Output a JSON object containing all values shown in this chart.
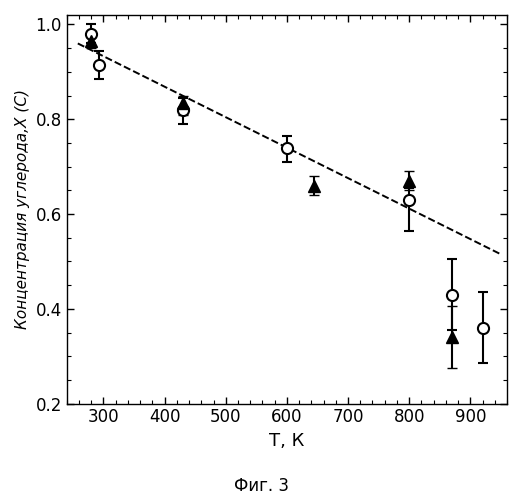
{
  "circles": {
    "x": [
      280,
      292,
      430,
      600,
      800,
      870,
      920
    ],
    "y": [
      0.98,
      0.915,
      0.82,
      0.74,
      0.63,
      0.43,
      0.36
    ],
    "yerr_lo": [
      0.02,
      0.03,
      0.03,
      0.03,
      0.065,
      0.075,
      0.075
    ],
    "yerr_hi": [
      0.02,
      0.03,
      0.025,
      0.025,
      0.025,
      0.075,
      0.075
    ]
  },
  "triangles": {
    "x": [
      280,
      430,
      645,
      800,
      870
    ],
    "y": [
      0.965,
      0.835,
      0.66,
      0.67,
      0.34
    ],
    "yerr_lo": [
      0.015,
      0.025,
      0.02,
      0.02,
      0.065
    ],
    "yerr_hi": [
      0.015,
      0.015,
      0.02,
      0.02,
      0.065
    ]
  },
  "dashed_line": {
    "x": [
      258,
      950
    ],
    "y": [
      0.96,
      0.515
    ]
  },
  "xlim": [
    240,
    960
  ],
  "ylim": [
    0.2,
    1.02
  ],
  "xticks": [
    300,
    400,
    500,
    600,
    700,
    800,
    900
  ],
  "yticks": [
    0.2,
    0.4,
    0.6,
    0.8,
    1.0
  ],
  "xlabel": "Т, К",
  "ylabel": "Концентрация углерода,X (C)",
  "caption": "Фиг. 3",
  "bg_color": "#ffffff"
}
